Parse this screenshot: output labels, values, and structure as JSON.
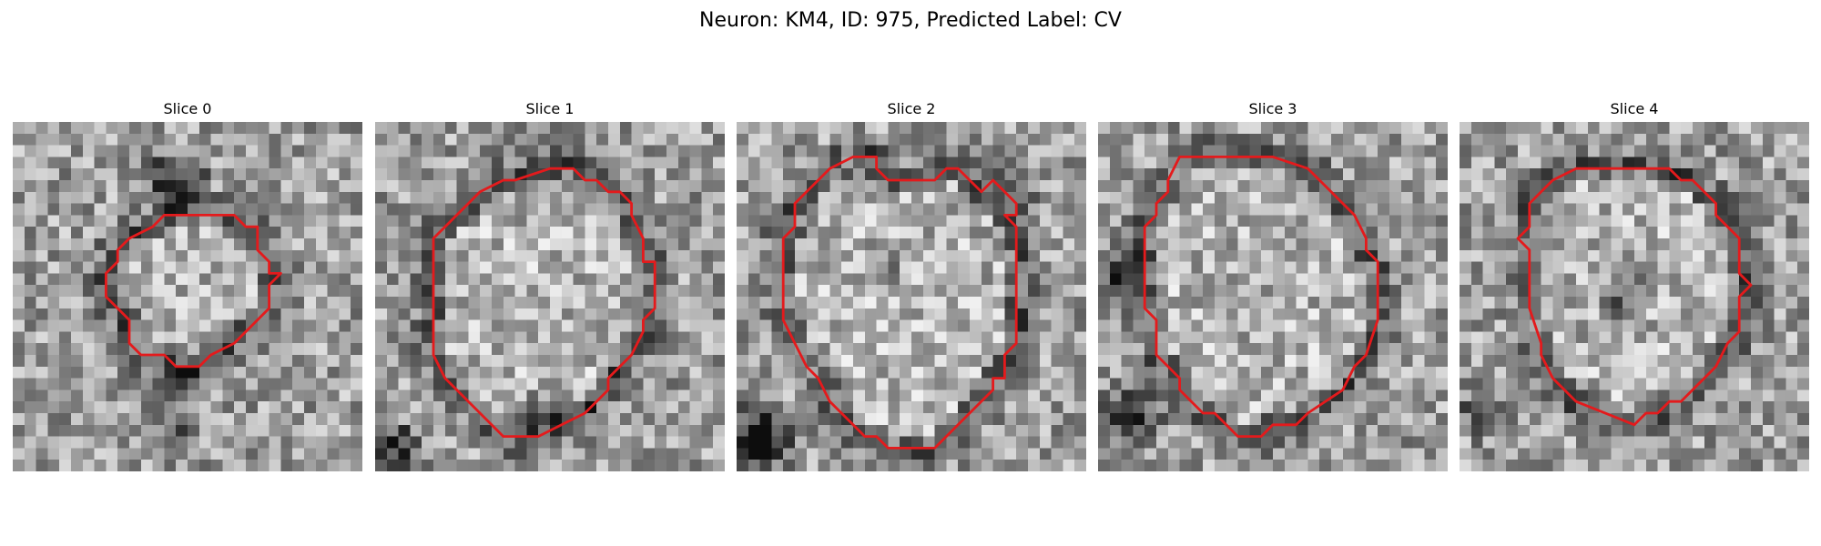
{
  "figure": {
    "title": "Neuron: KM4, ID: 975, Predicted Label: CV"
  },
  "contour_color": "#e41a1c",
  "panels": [
    {
      "title": "Slice 0",
      "image": "grayscale EM slice with small bright vesicle and dark membrane above and below"
    },
    {
      "title": "Slice 1",
      "image": "grayscale EM slice with large bright round vesicle bordered by dark membrane"
    },
    {
      "title": "Slice 2",
      "image": "grayscale EM slice with round vesicle, dark region in lower left"
    },
    {
      "title": "Slice 3",
      "image": "grayscale EM slice with large round vesicle, textured interior"
    },
    {
      "title": "Slice 4",
      "image": "grayscale EM slice with round vesicle, darker speckled interior"
    }
  ]
}
